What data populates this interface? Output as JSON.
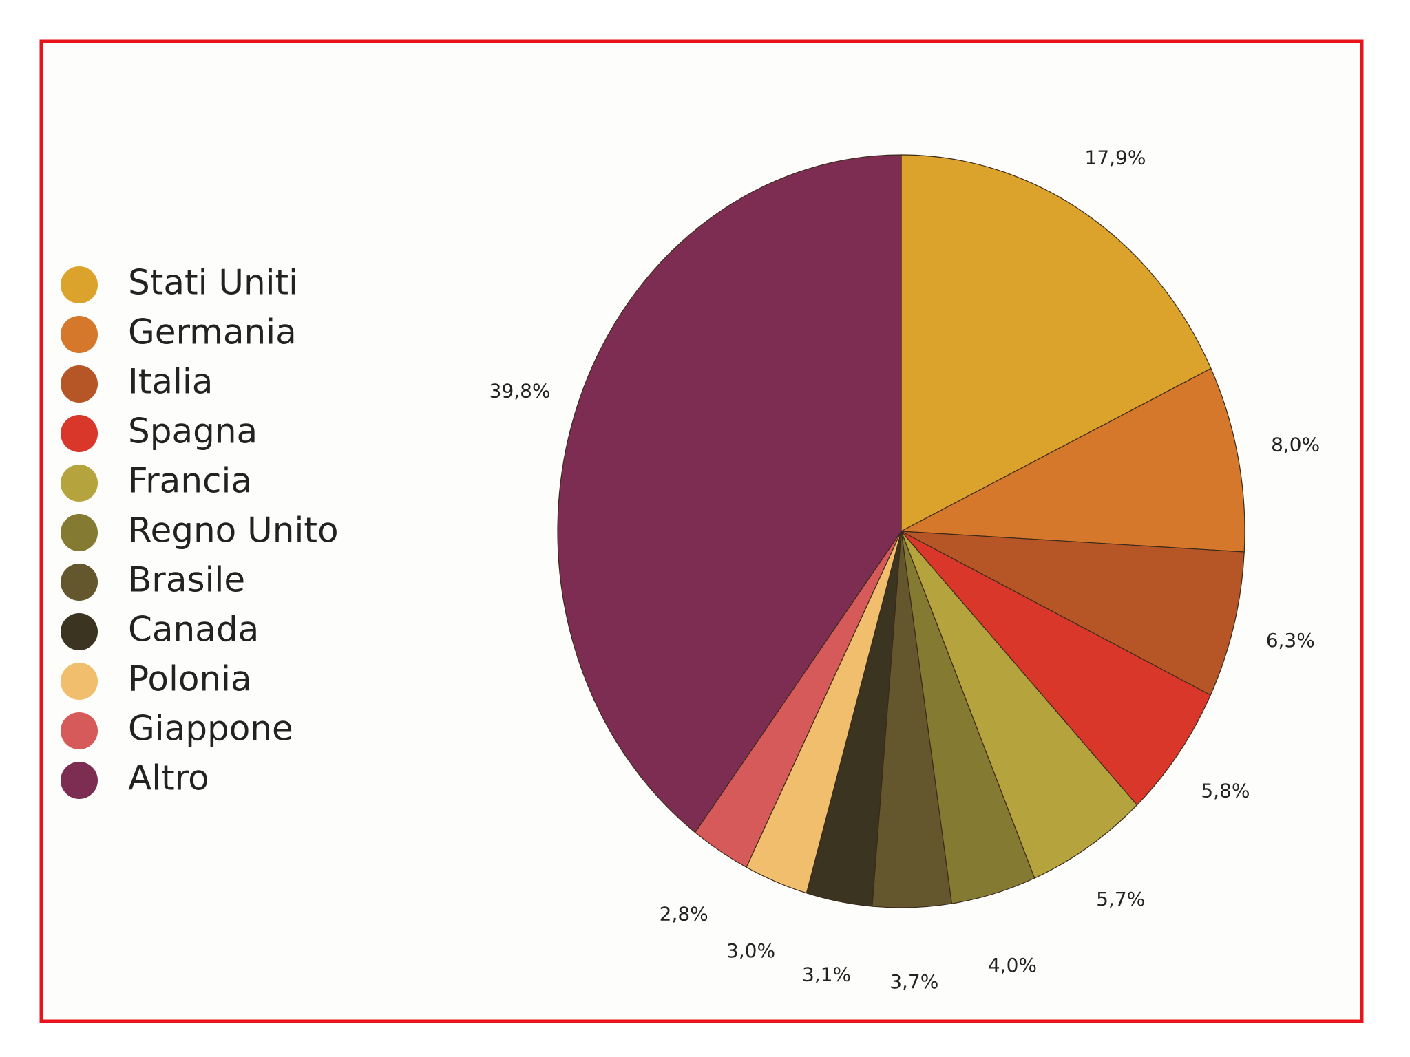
{
  "chart_data": {
    "type": "pie",
    "categories": [
      "Stati Uniti",
      "Germania",
      "Italia",
      "Spagna",
      "Francia",
      "Regno Unito",
      "Brasile",
      "Canada",
      "Polonia",
      "Giappone",
      "Altro"
    ],
    "values": [
      17.9,
      8.0,
      6.3,
      5.8,
      5.7,
      4.0,
      3.7,
      3.1,
      3.0,
      2.8,
      39.8
    ],
    "value_labels": [
      "17,9%",
      "8,0%",
      "6,3%",
      "5,8%",
      "5,7%",
      "4,0%",
      "3,7%",
      "3,1%",
      "3,0%",
      "2,8%",
      "39,8%"
    ],
    "colors": [
      "#dba32b",
      "#d6782b",
      "#b65627",
      "#d9372a",
      "#b5a33d",
      "#857a32",
      "#64572e",
      "#3a3421",
      "#f0be6c",
      "#d65a5a",
      "#7d2d52"
    ],
    "legend": "left"
  }
}
